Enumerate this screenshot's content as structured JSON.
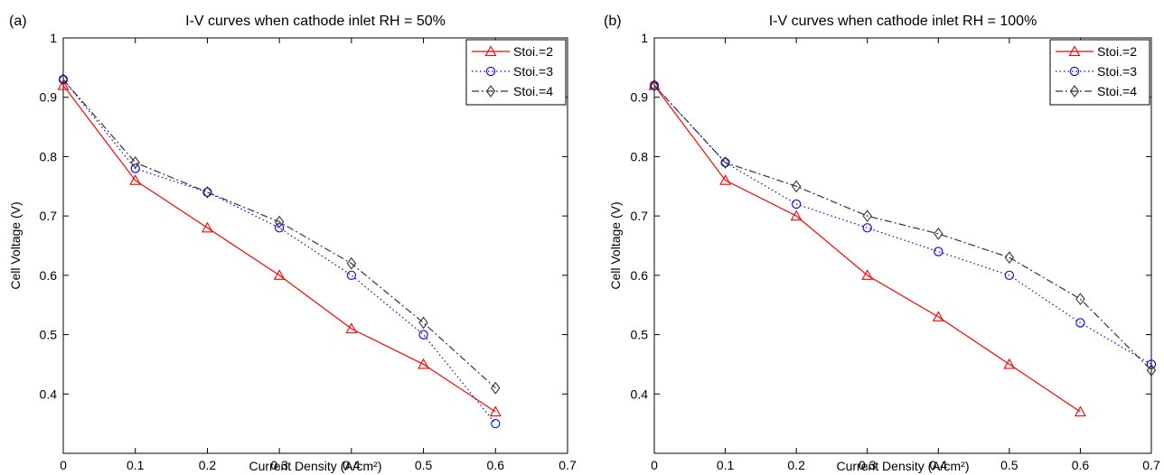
{
  "chart_data": [
    {
      "type": "line",
      "panel_label": "(a)",
      "title": "I-V curves when cathode inlet RH = 50%",
      "xlabel": "Current Density (A/cm²)",
      "ylabel": "Cell Voltage (V)",
      "xlim": [
        0,
        0.7
      ],
      "ylim": [
        0.3,
        1.0
      ],
      "xticks": [
        "0",
        "0.1",
        "0.2",
        "0.3",
        "0.4",
        "0.5",
        "0.6",
        "0.7"
      ],
      "yticks": [
        "0.4",
        "0.5",
        "0.6",
        "0.7",
        "0.8",
        "0.9",
        "1"
      ],
      "grid": false,
      "legend_position": "top-right",
      "series": [
        {
          "name": "Stoi.=2",
          "color": "#ff0000",
          "marker": "triangle",
          "dash": "solid",
          "x": [
            0,
            0.1,
            0.2,
            0.3,
            0.4,
            0.5,
            0.6
          ],
          "y": [
            0.92,
            0.76,
            0.68,
            0.6,
            0.51,
            0.45,
            0.37
          ]
        },
        {
          "name": "Stoi.=3",
          "color": "#0000ff",
          "marker": "circle",
          "dash": "dotted",
          "x": [
            0,
            0.1,
            0.2,
            0.3,
            0.4,
            0.5,
            0.6
          ],
          "y": [
            0.93,
            0.78,
            0.74,
            0.68,
            0.6,
            0.5,
            0.35
          ]
        },
        {
          "name": "Stoi.=4",
          "color": "#333333",
          "marker": "diamond",
          "dash": "dashdot",
          "x": [
            0,
            0.1,
            0.2,
            0.3,
            0.4,
            0.5,
            0.6
          ],
          "y": [
            0.93,
            0.79,
            0.74,
            0.69,
            0.62,
            0.52,
            0.41
          ]
        }
      ]
    },
    {
      "type": "line",
      "panel_label": "(b)",
      "title": "I-V curves when cathode inlet RH = 100%",
      "xlabel": "Current Density (A/cm²)",
      "ylabel": "Cell Voltage (V)",
      "xlim": [
        0,
        0.7
      ],
      "ylim": [
        0.3,
        1.0
      ],
      "xticks": [
        "0",
        "0.1",
        "0.2",
        "0.3",
        "0.4",
        "0.5",
        "0.6",
        "0.7"
      ],
      "yticks": [
        "0.4",
        "0.5",
        "0.6",
        "0.7",
        "0.8",
        "0.9",
        "1"
      ],
      "grid": false,
      "legend_position": "top-right",
      "series": [
        {
          "name": "Stoi.=2",
          "color": "#ff0000",
          "marker": "triangle",
          "dash": "solid",
          "x": [
            0,
            0.1,
            0.2,
            0.3,
            0.4,
            0.5,
            0.6
          ],
          "y": [
            0.92,
            0.76,
            0.7,
            0.6,
            0.53,
            0.45,
            0.37
          ]
        },
        {
          "name": "Stoi.=3",
          "color": "#0000ff",
          "marker": "circle",
          "dash": "dotted",
          "x": [
            0,
            0.1,
            0.2,
            0.3,
            0.4,
            0.5,
            0.6,
            0.7
          ],
          "y": [
            0.92,
            0.79,
            0.72,
            0.68,
            0.64,
            0.6,
            0.52,
            0.45
          ]
        },
        {
          "name": "Stoi.=4",
          "color": "#333333",
          "marker": "diamond",
          "dash": "dashdot",
          "x": [
            0,
            0.1,
            0.2,
            0.3,
            0.4,
            0.5,
            0.6,
            0.7
          ],
          "y": [
            0.92,
            0.79,
            0.75,
            0.7,
            0.67,
            0.63,
            0.56,
            0.44
          ]
        }
      ]
    }
  ]
}
